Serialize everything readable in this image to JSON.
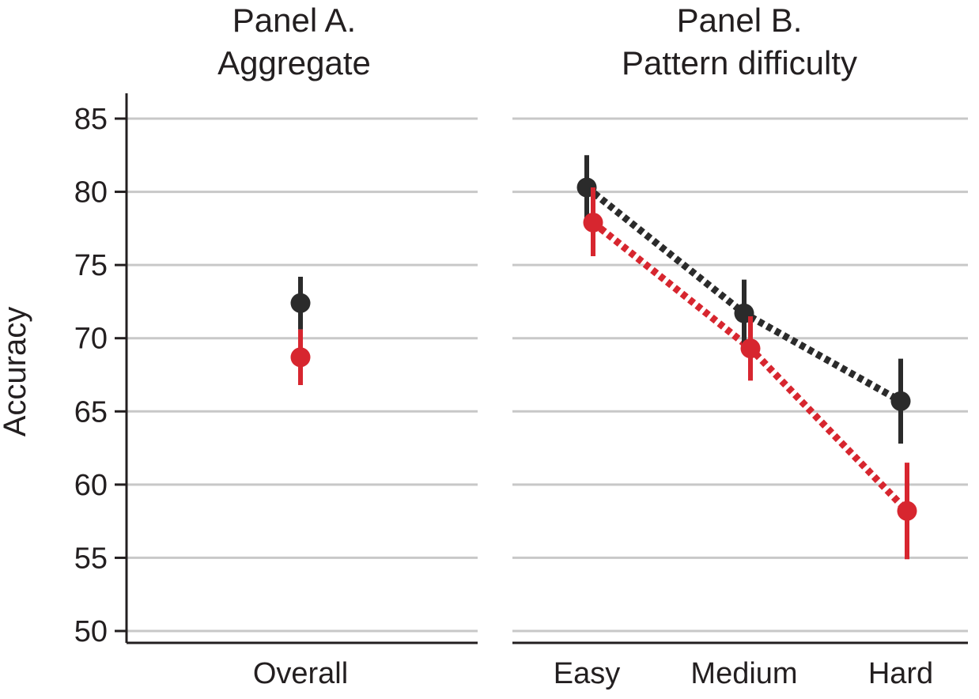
{
  "chart_data": {
    "type": "scatter",
    "ylabel": "Accuracy",
    "ylim": [
      50,
      85
    ],
    "yticks": [
      50,
      55,
      60,
      65,
      70,
      75,
      80,
      85
    ],
    "grid": true,
    "series_colors": [
      "#2b2b2b",
      "#d7262f"
    ],
    "panels": [
      {
        "title_line1": "Panel A.",
        "title_line2": "Aggregate",
        "categories": [
          "Overall"
        ],
        "connected": false,
        "series": [
          {
            "color": "#2b2b2b",
            "values": [
              72.4
            ],
            "ci_low": [
              70.6
            ],
            "ci_high": [
              74.2
            ]
          },
          {
            "color": "#d7262f",
            "values": [
              68.7
            ],
            "ci_low": [
              66.8
            ],
            "ci_high": [
              70.6
            ]
          }
        ]
      },
      {
        "title_line1": "Panel B.",
        "title_line2": "Pattern difficulty",
        "categories": [
          "Easy",
          "Medium",
          "Hard"
        ],
        "connected": true,
        "series": [
          {
            "color": "#2b2b2b",
            "values": [
              80.3,
              71.7,
              65.7
            ],
            "ci_low": [
              78.2,
              69.4,
              62.8
            ],
            "ci_high": [
              82.5,
              74.0,
              68.6
            ]
          },
          {
            "color": "#d7262f",
            "values": [
              77.9,
              69.3,
              58.2
            ],
            "ci_low": [
              75.6,
              67.1,
              54.9
            ],
            "ci_high": [
              80.3,
              71.5,
              61.5
            ]
          }
        ]
      }
    ]
  }
}
